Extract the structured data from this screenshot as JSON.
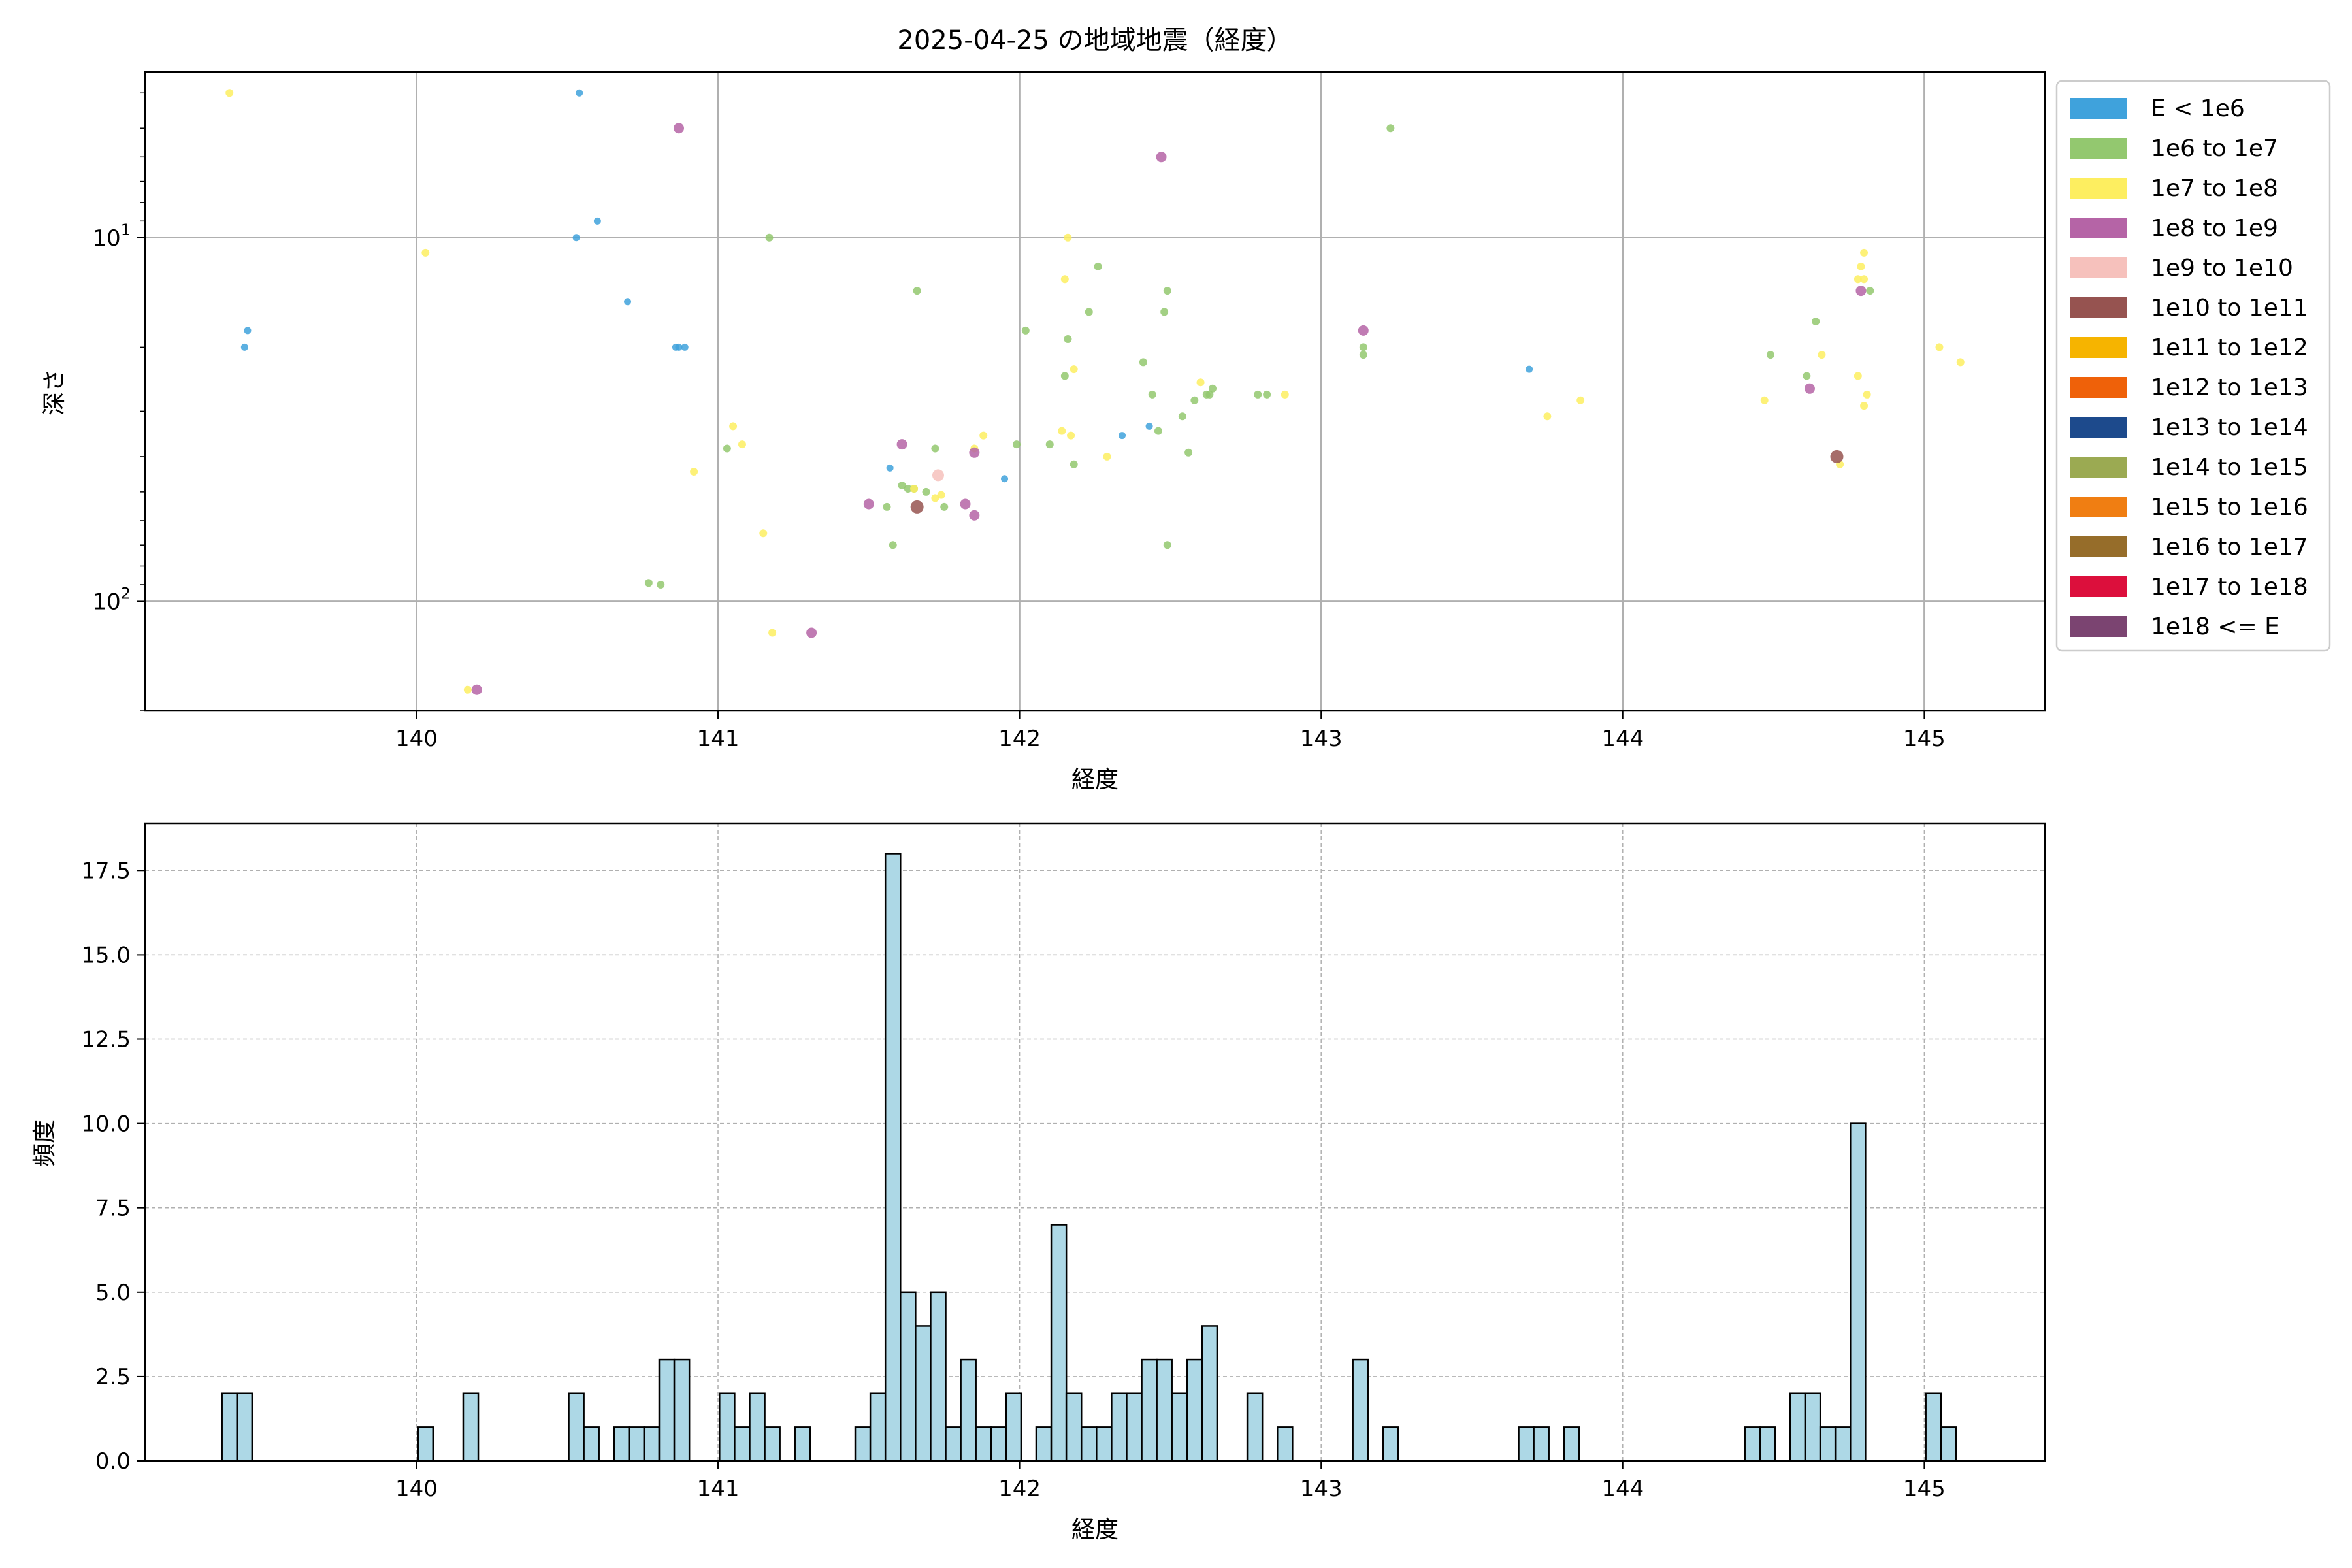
{
  "chart_data": [
    {
      "type": "scatter",
      "title": "2025-04-25 の地域地震（経度）",
      "xlabel": "経度",
      "ylabel": "深さ",
      "xlim": [
        139.1,
        145.4
      ],
      "ylim": [
        200,
        3.5
      ],
      "yscale": "log",
      "y_inverted": true,
      "grid": true,
      "legend_position": "right",
      "xticks": [
        140,
        141,
        142,
        143,
        144,
        145
      ],
      "yticks": [
        {
          "value": 10,
          "label": "10",
          "exp": "1"
        },
        {
          "value": 100,
          "label": "10",
          "exp": "2"
        }
      ],
      "legend": [
        {
          "label": "E < 1e6",
          "color": "#3fa2dc"
        },
        {
          "label": "1e6 to 1e7",
          "color": "#93c86f"
        },
        {
          "label": "1e7 to 1e8",
          "color": "#fdee60"
        },
        {
          "label": "1e8 to 1e9",
          "color": "#b564a6"
        },
        {
          "label": "1e9 to 1e10",
          "color": "#f6c1bc"
        },
        {
          "label": "1e10 to 1e11",
          "color": "#965350"
        },
        {
          "label": "1e11 to 1e12",
          "color": "#f6b400"
        },
        {
          "label": "1e12 to 1e13",
          "color": "#ef6109"
        },
        {
          "label": "1e13 to 1e14",
          "color": "#1d4a8c"
        },
        {
          "label": "1e14 to 1e15",
          "color": "#9baa52"
        },
        {
          "label": "1e15 to 1e16",
          "color": "#f07e12"
        },
        {
          "label": "1e16 to 1e17",
          "color": "#966d2a"
        },
        {
          "label": "1e17 to 1e18",
          "color": "#dc0f3c"
        },
        {
          "label": "1e18 <= E",
          "color": "#7b4471"
        }
      ],
      "series": [
        {
          "legend_index": 0,
          "points": [
            [
              139.43,
              20
            ],
            [
              139.44,
              18
            ],
            [
              140.53,
              10
            ],
            [
              140.54,
              4
            ],
            [
              140.6,
              9
            ],
            [
              140.7,
              15
            ],
            [
              140.86,
              20
            ],
            [
              140.87,
              20
            ],
            [
              140.89,
              20
            ],
            [
              141.57,
              43
            ],
            [
              141.95,
              46
            ],
            [
              142.34,
              35
            ],
            [
              142.43,
              33
            ],
            [
              143.69,
              23
            ]
          ]
        },
        {
          "legend_index": 1,
          "points": [
            [
              140.77,
              89
            ],
            [
              140.81,
              90
            ],
            [
              141.03,
              38
            ],
            [
              141.17,
              10
            ],
            [
              141.56,
              55
            ],
            [
              141.58,
              70
            ],
            [
              141.61,
              48
            ],
            [
              141.63,
              49
            ],
            [
              141.65,
              49
            ],
            [
              141.66,
              14
            ],
            [
              141.69,
              50
            ],
            [
              141.72,
              38
            ],
            [
              141.75,
              55
            ],
            [
              141.99,
              37
            ],
            [
              142.02,
              18
            ],
            [
              142.1,
              37
            ],
            [
              142.15,
              24
            ],
            [
              142.16,
              19
            ],
            [
              142.18,
              42
            ],
            [
              142.23,
              16
            ],
            [
              142.26,
              12
            ],
            [
              142.41,
              22
            ],
            [
              142.44,
              27
            ],
            [
              142.46,
              34
            ],
            [
              142.48,
              16
            ],
            [
              142.49,
              14
            ],
            [
              142.49,
              70
            ],
            [
              142.54,
              31
            ],
            [
              142.56,
              39
            ],
            [
              142.58,
              28
            ],
            [
              142.62,
              27
            ],
            [
              142.63,
              27
            ],
            [
              142.64,
              26
            ],
            [
              142.79,
              27
            ],
            [
              142.82,
              27
            ],
            [
              143.14,
              21
            ],
            [
              143.14,
              20
            ],
            [
              143.23,
              5
            ],
            [
              144.49,
              21
            ],
            [
              144.61,
              24
            ],
            [
              144.64,
              17
            ],
            [
              144.82,
              14
            ]
          ]
        },
        {
          "legend_index": 2,
          "points": [
            [
              139.38,
              4
            ],
            [
              140.03,
              11
            ],
            [
              140.17,
              175
            ],
            [
              140.92,
              44
            ],
            [
              141.05,
              33
            ],
            [
              141.08,
              37
            ],
            [
              141.15,
              65
            ],
            [
              141.18,
              122
            ],
            [
              141.65,
              49
            ],
            [
              141.72,
              52
            ],
            [
              141.74,
              51
            ],
            [
              141.85,
              38
            ],
            [
              141.88,
              35
            ],
            [
              142.14,
              34
            ],
            [
              142.15,
              13
            ],
            [
              142.16,
              10
            ],
            [
              142.17,
              35
            ],
            [
              142.18,
              23
            ],
            [
              142.29,
              40
            ],
            [
              142.6,
              25
            ],
            [
              142.88,
              27
            ],
            [
              143.75,
              31
            ],
            [
              143.86,
              28
            ],
            [
              144.47,
              28
            ],
            [
              144.66,
              21
            ],
            [
              144.72,
              42
            ],
            [
              144.78,
              24
            ],
            [
              144.78,
              13
            ],
            [
              144.79,
              12
            ],
            [
              144.8,
              13
            ],
            [
              144.8,
              29
            ],
            [
              144.8,
              11
            ],
            [
              144.81,
              27
            ],
            [
              145.05,
              20
            ],
            [
              145.12,
              22
            ]
          ]
        },
        {
          "legend_index": 3,
          "points": [
            [
              140.2,
              175
            ],
            [
              140.87,
              5
            ],
            [
              141.31,
              122
            ],
            [
              141.5,
              54
            ],
            [
              141.61,
              37
            ],
            [
              141.82,
              54
            ],
            [
              141.85,
              58
            ],
            [
              141.85,
              39
            ],
            [
              142.47,
              6
            ],
            [
              143.14,
              18
            ],
            [
              144.62,
              26
            ],
            [
              144.79,
              14
            ]
          ]
        },
        {
          "legend_index": 4,
          "points": [
            [
              141.73,
              45
            ]
          ]
        },
        {
          "legend_index": 5,
          "points": [
            [
              141.66,
              55
            ],
            [
              144.71,
              40
            ]
          ]
        }
      ]
    },
    {
      "type": "bar",
      "xlabel": "経度",
      "ylabel": "頻度",
      "xlim": [
        139.1,
        145.4
      ],
      "ylim": [
        0,
        18.9
      ],
      "grid": true,
      "bar_color": "#add8e6",
      "bin_width": 0.05,
      "xticks": [
        140,
        141,
        142,
        143,
        144,
        145
      ],
      "yticks": [
        "0.0",
        "2.5",
        "5.0",
        "7.5",
        "10.0",
        "12.5",
        "15.0",
        "17.5"
      ],
      "bins": [
        [
          139.38,
          2
        ],
        [
          139.43,
          2
        ],
        [
          140.03,
          1
        ],
        [
          140.18,
          2
        ],
        [
          140.53,
          2
        ],
        [
          140.58,
          1
        ],
        [
          140.68,
          1
        ],
        [
          140.73,
          1
        ],
        [
          140.78,
          1
        ],
        [
          140.83,
          3
        ],
        [
          140.88,
          3
        ],
        [
          141.03,
          2
        ],
        [
          141.08,
          1
        ],
        [
          141.13,
          2
        ],
        [
          141.18,
          1
        ],
        [
          141.28,
          1
        ],
        [
          141.48,
          1
        ],
        [
          141.53,
          2
        ],
        [
          141.58,
          18
        ],
        [
          141.63,
          5
        ],
        [
          141.68,
          4
        ],
        [
          141.73,
          5
        ],
        [
          141.78,
          1
        ],
        [
          141.83,
          3
        ],
        [
          141.88,
          1
        ],
        [
          141.93,
          1
        ],
        [
          141.98,
          2
        ],
        [
          142.08,
          1
        ],
        [
          142.13,
          7
        ],
        [
          142.18,
          2
        ],
        [
          142.23,
          1
        ],
        [
          142.28,
          1
        ],
        [
          142.33,
          2
        ],
        [
          142.38,
          2
        ],
        [
          142.43,
          3
        ],
        [
          142.48,
          3
        ],
        [
          142.53,
          2
        ],
        [
          142.58,
          3
        ],
        [
          142.63,
          4
        ],
        [
          142.78,
          2
        ],
        [
          142.88,
          1
        ],
        [
          143.13,
          3
        ],
        [
          143.23,
          1
        ],
        [
          143.68,
          1
        ],
        [
          143.73,
          1
        ],
        [
          143.83,
          1
        ],
        [
          144.43,
          1
        ],
        [
          144.48,
          1
        ],
        [
          144.58,
          2
        ],
        [
          144.63,
          2
        ],
        [
          144.68,
          1
        ],
        [
          144.73,
          1
        ],
        [
          144.78,
          10
        ],
        [
          145.03,
          2
        ],
        [
          145.08,
          1
        ]
      ]
    }
  ]
}
